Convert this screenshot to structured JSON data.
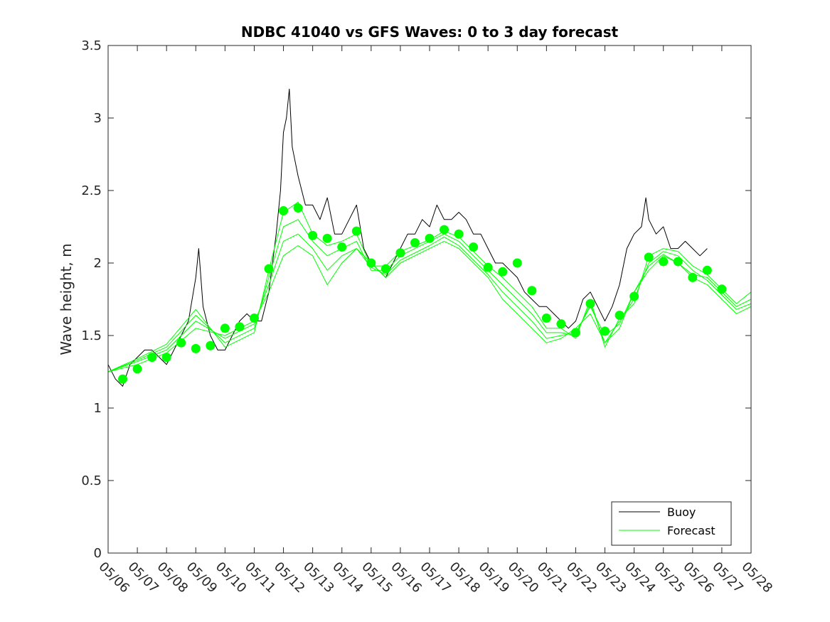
{
  "chart_data": {
    "type": "line",
    "title": "NDBC 41040 vs GFS Waves: 0 to 3 day forecast",
    "xlabel": "",
    "ylabel": "Wave height, m",
    "xlim": [
      "05/06",
      "05/28"
    ],
    "ylim": [
      0,
      3.5
    ],
    "x_tick_labels": [
      "05/06",
      "05/07",
      "05/08",
      "05/09",
      "05/10",
      "05/11",
      "05/12",
      "05/13",
      "05/14",
      "05/15",
      "05/16",
      "05/17",
      "05/18",
      "05/19",
      "05/20",
      "05/21",
      "05/22",
      "05/23",
      "05/24",
      "05/25",
      "05/26",
      "05/27",
      "05/28"
    ],
    "y_ticks": [
      0,
      0.5,
      1,
      1.5,
      2,
      2.5,
      3,
      3.5
    ],
    "y_tick_labels": [
      "0",
      "0.5",
      "1",
      "1.5",
      "2",
      "2.5",
      "3",
      "3.5"
    ],
    "x_unit": "days since 05/06",
    "legend": {
      "position": "bottom-right",
      "entries": [
        "Buoy",
        "Forecast"
      ]
    },
    "colors": {
      "buoy": "#000000",
      "forecast": "#00ff00"
    },
    "series": [
      {
        "name": "Buoy",
        "style": "line",
        "points": [
          [
            0,
            1.3
          ],
          [
            0.25,
            1.2
          ],
          [
            0.5,
            1.15
          ],
          [
            0.75,
            1.3
          ],
          [
            1,
            1.35
          ],
          [
            1.25,
            1.4
          ],
          [
            1.5,
            1.4
          ],
          [
            1.75,
            1.35
          ],
          [
            2,
            1.3
          ],
          [
            2.25,
            1.4
          ],
          [
            2.5,
            1.5
          ],
          [
            2.75,
            1.6
          ],
          [
            3,
            1.9
          ],
          [
            3.1,
            2.1
          ],
          [
            3.25,
            1.7
          ],
          [
            3.5,
            1.5
          ],
          [
            3.75,
            1.4
          ],
          [
            4,
            1.4
          ],
          [
            4.25,
            1.5
          ],
          [
            4.5,
            1.6
          ],
          [
            4.75,
            1.65
          ],
          [
            5,
            1.6
          ],
          [
            5.25,
            1.6
          ],
          [
            5.5,
            1.8
          ],
          [
            5.75,
            2.2
          ],
          [
            5.9,
            2.5
          ],
          [
            6,
            2.9
          ],
          [
            6.1,
            3.0
          ],
          [
            6.2,
            3.2
          ],
          [
            6.3,
            2.8
          ],
          [
            6.5,
            2.6
          ],
          [
            6.75,
            2.4
          ],
          [
            7,
            2.4
          ],
          [
            7.25,
            2.3
          ],
          [
            7.5,
            2.45
          ],
          [
            7.75,
            2.2
          ],
          [
            8,
            2.2
          ],
          [
            8.25,
            2.3
          ],
          [
            8.5,
            2.4
          ],
          [
            8.75,
            2.1
          ],
          [
            9,
            2.0
          ],
          [
            9.25,
            1.95
          ],
          [
            9.5,
            1.9
          ],
          [
            9.75,
            2.0
          ],
          [
            10,
            2.1
          ],
          [
            10.25,
            2.2
          ],
          [
            10.5,
            2.2
          ],
          [
            10.75,
            2.3
          ],
          [
            11,
            2.25
          ],
          [
            11.25,
            2.4
          ],
          [
            11.5,
            2.3
          ],
          [
            11.75,
            2.3
          ],
          [
            12,
            2.35
          ],
          [
            12.25,
            2.3
          ],
          [
            12.5,
            2.2
          ],
          [
            12.75,
            2.2
          ],
          [
            13,
            2.1
          ],
          [
            13.25,
            2.0
          ],
          [
            13.5,
            2.0
          ],
          [
            13.75,
            1.95
          ],
          [
            14,
            1.9
          ],
          [
            14.25,
            1.8
          ],
          [
            14.5,
            1.75
          ],
          [
            14.75,
            1.7
          ],
          [
            15,
            1.7
          ],
          [
            15.25,
            1.65
          ],
          [
            15.5,
            1.6
          ],
          [
            15.75,
            1.55
          ],
          [
            16,
            1.6
          ],
          [
            16.25,
            1.75
          ],
          [
            16.5,
            1.8
          ],
          [
            16.75,
            1.7
          ],
          [
            17,
            1.6
          ],
          [
            17.25,
            1.7
          ],
          [
            17.5,
            1.85
          ],
          [
            17.75,
            2.1
          ],
          [
            18,
            2.2
          ],
          [
            18.25,
            2.25
          ],
          [
            18.4,
            2.45
          ],
          [
            18.5,
            2.3
          ],
          [
            18.75,
            2.2
          ],
          [
            19,
            2.25
          ],
          [
            19.25,
            2.1
          ],
          [
            19.5,
            2.1
          ],
          [
            19.75,
            2.15
          ],
          [
            20,
            2.1
          ],
          [
            20.25,
            2.05
          ],
          [
            20.5,
            2.1
          ]
        ]
      },
      {
        "name": "Forecast",
        "style": "markers",
        "points": [
          [
            0.5,
            1.2
          ],
          [
            1,
            1.27
          ],
          [
            1.5,
            1.35
          ],
          [
            2,
            1.35
          ],
          [
            2.5,
            1.45
          ],
          [
            3,
            1.41
          ],
          [
            3.5,
            1.43
          ],
          [
            4,
            1.55
          ],
          [
            4.5,
            1.56
          ],
          [
            5,
            1.62
          ],
          [
            5.5,
            1.96
          ],
          [
            6,
            2.36
          ],
          [
            6.5,
            2.38
          ],
          [
            7,
            2.19
          ],
          [
            7.5,
            2.17
          ],
          [
            8,
            2.11
          ],
          [
            8.5,
            2.22
          ],
          [
            9,
            2.0
          ],
          [
            9.5,
            1.96
          ],
          [
            10,
            2.07
          ],
          [
            10.5,
            2.14
          ],
          [
            11,
            2.17
          ],
          [
            11.5,
            2.23
          ],
          [
            12,
            2.2
          ],
          [
            12.5,
            2.11
          ],
          [
            13,
            1.97
          ],
          [
            13.5,
            1.94
          ],
          [
            14,
            2.0
          ],
          [
            14.5,
            1.81
          ],
          [
            15,
            1.62
          ],
          [
            15.5,
            1.58
          ],
          [
            16,
            1.52
          ],
          [
            16.5,
            1.72
          ],
          [
            17,
            1.53
          ],
          [
            17.5,
            1.64
          ],
          [
            18,
            1.77
          ],
          [
            18.5,
            2.04
          ],
          [
            19,
            2.01
          ],
          [
            19.5,
            2.01
          ],
          [
            20,
            1.9
          ],
          [
            20.5,
            1.95
          ],
          [
            21,
            1.82
          ]
        ]
      },
      {
        "name": "Forecast",
        "style": "line",
        "points": [
          [
            0,
            1.25
          ],
          [
            1,
            1.3
          ],
          [
            2,
            1.38
          ],
          [
            3,
            1.55
          ],
          [
            4,
            1.5
          ],
          [
            5,
            1.6
          ],
          [
            5.5,
            1.8
          ],
          [
            6,
            2.05
          ],
          [
            6.5,
            2.12
          ],
          [
            7,
            2.05
          ],
          [
            7.5,
            1.85
          ],
          [
            8,
            2.0
          ],
          [
            8.5,
            2.1
          ],
          [
            9,
            2.0
          ],
          [
            9.5,
            1.9
          ],
          [
            10,
            2.0
          ],
          [
            11,
            2.1
          ],
          [
            11.5,
            2.15
          ],
          [
            12,
            2.1
          ],
          [
            12.5,
            2.0
          ],
          [
            13,
            1.9
          ],
          [
            13.5,
            1.75
          ],
          [
            14,
            1.65
          ],
          [
            14.5,
            1.55
          ],
          [
            15,
            1.45
          ],
          [
            15.5,
            1.48
          ],
          [
            16,
            1.55
          ],
          [
            16.5,
            1.65
          ],
          [
            17,
            1.45
          ],
          [
            17.5,
            1.55
          ],
          [
            18,
            1.8
          ],
          [
            18.5,
            1.95
          ],
          [
            19,
            2.05
          ],
          [
            19.5,
            2.0
          ],
          [
            20,
            1.9
          ],
          [
            20.5,
            1.85
          ],
          [
            21,
            1.75
          ],
          [
            21.5,
            1.65
          ],
          [
            22,
            1.7
          ]
        ]
      },
      {
        "name": "Forecast",
        "style": "line",
        "points": [
          [
            0,
            1.25
          ],
          [
            1,
            1.32
          ],
          [
            2,
            1.4
          ],
          [
            3,
            1.6
          ],
          [
            4,
            1.48
          ],
          [
            5,
            1.58
          ],
          [
            5.5,
            1.85
          ],
          [
            6,
            2.15
          ],
          [
            6.5,
            2.2
          ],
          [
            7,
            2.1
          ],
          [
            7.5,
            1.95
          ],
          [
            8,
            2.05
          ],
          [
            8.5,
            2.1
          ],
          [
            9,
            1.97
          ],
          [
            9.5,
            1.92
          ],
          [
            10,
            2.02
          ],
          [
            11,
            2.12
          ],
          [
            11.5,
            2.18
          ],
          [
            12,
            2.12
          ],
          [
            12.5,
            2.02
          ],
          [
            13,
            1.92
          ],
          [
            13.5,
            1.8
          ],
          [
            14,
            1.7
          ],
          [
            14.5,
            1.6
          ],
          [
            15,
            1.48
          ],
          [
            15.5,
            1.5
          ],
          [
            16,
            1.52
          ],
          [
            16.5,
            1.7
          ],
          [
            17,
            1.5
          ],
          [
            17.5,
            1.58
          ],
          [
            18,
            1.8
          ],
          [
            18.5,
            1.98
          ],
          [
            19,
            2.06
          ],
          [
            19.5,
            2.0
          ],
          [
            20,
            1.92
          ],
          [
            20.5,
            1.9
          ],
          [
            21,
            1.8
          ],
          [
            21.5,
            1.7
          ],
          [
            22,
            1.75
          ]
        ]
      },
      {
        "name": "Forecast",
        "style": "line",
        "points": [
          [
            0,
            1.25
          ],
          [
            1,
            1.33
          ],
          [
            2,
            1.42
          ],
          [
            3,
            1.64
          ],
          [
            4,
            1.45
          ],
          [
            5,
            1.55
          ],
          [
            5.5,
            1.9
          ],
          [
            6,
            2.25
          ],
          [
            6.5,
            2.3
          ],
          [
            7,
            2.15
          ],
          [
            7.5,
            2.05
          ],
          [
            8,
            2.1
          ],
          [
            8.5,
            2.15
          ],
          [
            9,
            1.95
          ],
          [
            9.5,
            1.95
          ],
          [
            10,
            2.05
          ],
          [
            11,
            2.15
          ],
          [
            11.5,
            2.2
          ],
          [
            12,
            2.15
          ],
          [
            12.5,
            2.05
          ],
          [
            13,
            1.95
          ],
          [
            13.5,
            1.85
          ],
          [
            14,
            1.75
          ],
          [
            14.5,
            1.65
          ],
          [
            15,
            1.52
          ],
          [
            15.5,
            1.52
          ],
          [
            16,
            1.5
          ],
          [
            16.5,
            1.72
          ],
          [
            17,
            1.45
          ],
          [
            17.5,
            1.6
          ],
          [
            18,
            1.75
          ],
          [
            18.5,
            2.0
          ],
          [
            19,
            2.08
          ],
          [
            19.5,
            2.05
          ],
          [
            20,
            1.95
          ],
          [
            20.5,
            1.88
          ],
          [
            21,
            1.78
          ],
          [
            21.5,
            1.68
          ],
          [
            22,
            1.72
          ]
        ]
      },
      {
        "name": "Forecast",
        "style": "line",
        "points": [
          [
            0,
            1.25
          ],
          [
            1,
            1.34
          ],
          [
            2,
            1.44
          ],
          [
            3,
            1.68
          ],
          [
            4,
            1.42
          ],
          [
            5,
            1.52
          ],
          [
            5.5,
            1.95
          ],
          [
            6,
            2.35
          ],
          [
            6.5,
            2.42
          ],
          [
            7,
            2.2
          ],
          [
            7.5,
            2.12
          ],
          [
            8,
            2.15
          ],
          [
            8.5,
            2.2
          ],
          [
            9,
            1.98
          ],
          [
            9.5,
            1.98
          ],
          [
            10,
            2.08
          ],
          [
            11,
            2.16
          ],
          [
            11.5,
            2.22
          ],
          [
            12,
            2.18
          ],
          [
            12.5,
            2.08
          ],
          [
            13,
            1.98
          ],
          [
            13.5,
            1.9
          ],
          [
            14,
            1.8
          ],
          [
            14.5,
            1.7
          ],
          [
            15,
            1.55
          ],
          [
            15.5,
            1.55
          ],
          [
            16,
            1.48
          ],
          [
            16.5,
            1.75
          ],
          [
            17,
            1.42
          ],
          [
            17.5,
            1.62
          ],
          [
            18,
            1.72
          ],
          [
            18.5,
            2.05
          ],
          [
            19,
            2.1
          ],
          [
            19.5,
            2.08
          ],
          [
            20,
            1.98
          ],
          [
            20.5,
            1.92
          ],
          [
            21,
            1.82
          ],
          [
            21.5,
            1.72
          ],
          [
            22,
            1.8
          ]
        ]
      }
    ]
  }
}
